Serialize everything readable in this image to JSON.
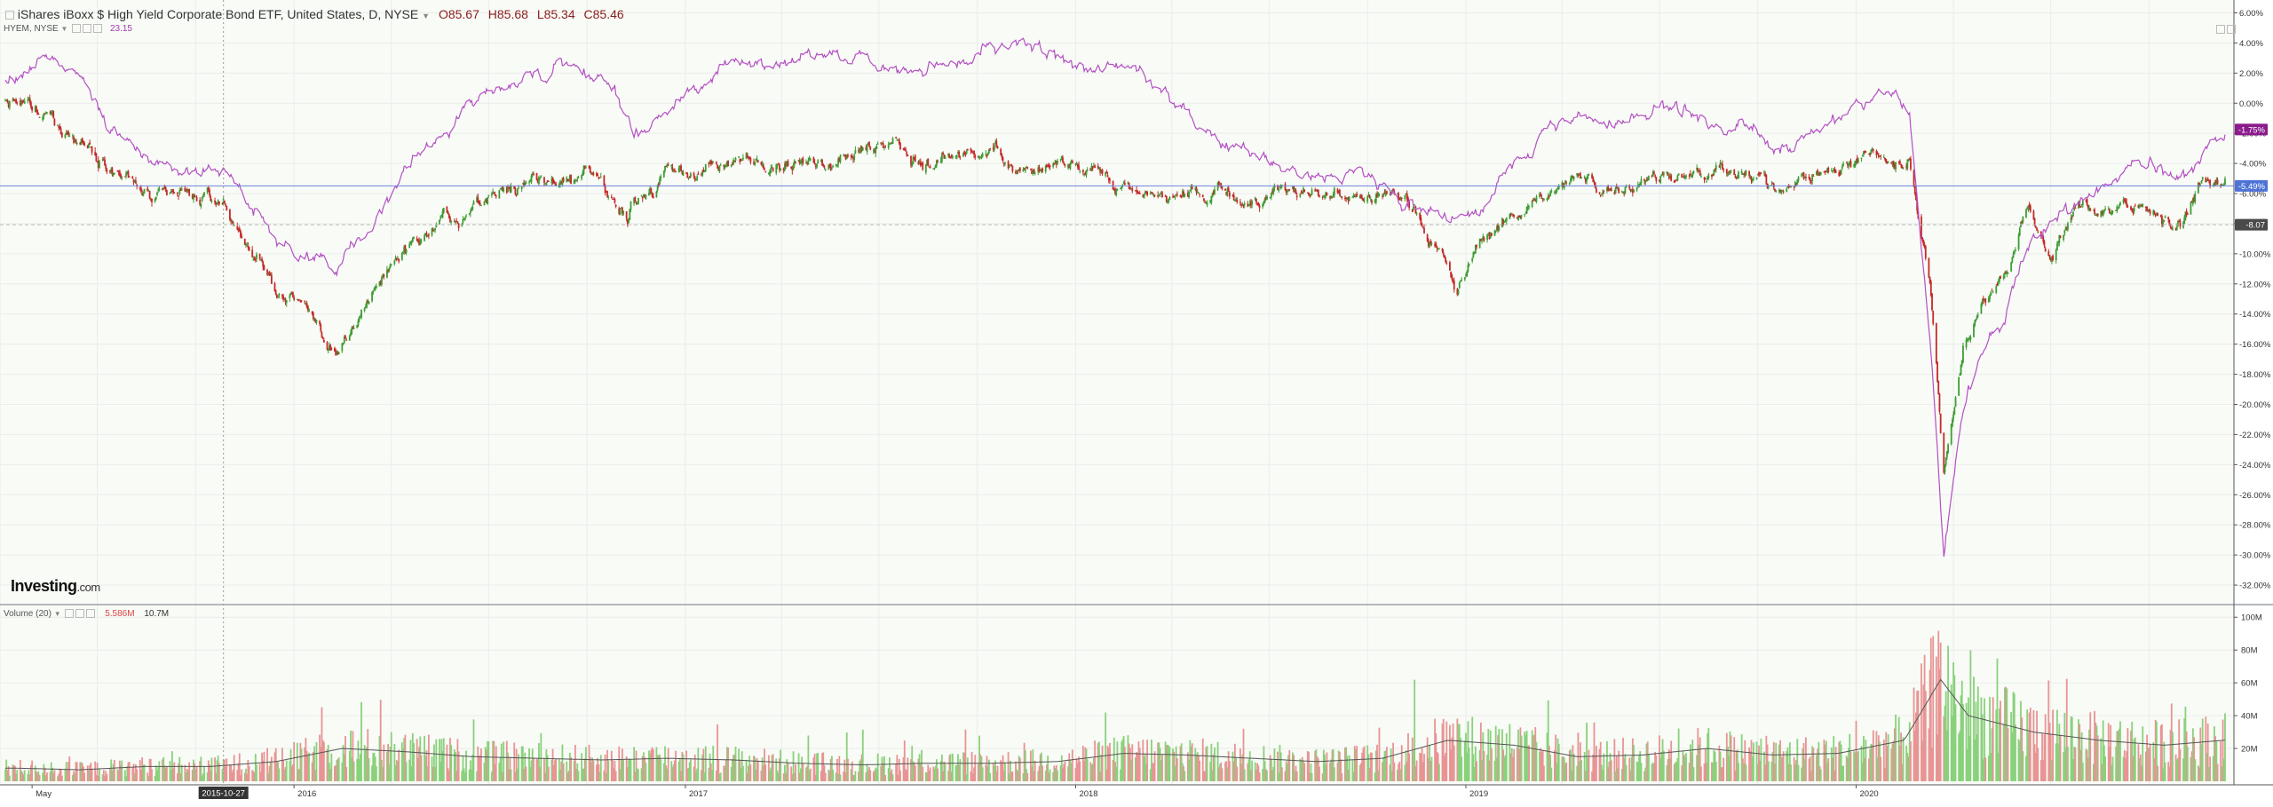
{
  "header": {
    "title": "iShares iBoxx $ High Yield Corporate Bond ETF, United States, D, NYSE",
    "ohlc": {
      "open": "O85.67",
      "high": "H85.68",
      "low": "L85.34",
      "close": "C85.46"
    },
    "compare_label": "HYEM, NYSE",
    "compare_value": "23.15",
    "volume_label": "Volume (20)",
    "volume_value": "5.586M",
    "volume_ma_value": "10.7M"
  },
  "logo": {
    "brand": "Investing",
    "suffix": ".com"
  },
  "colors": {
    "up": "#3f9c35",
    "down": "#c42a2a",
    "up_volume": "#8ad17c",
    "down_volume": "#e89494",
    "compare_line": "#b44fc4",
    "price_line": "#6e86dd",
    "grid": "#ececec",
    "background": "#f8fbf6"
  },
  "chart_data": [
    {
      "type": "line",
      "title": "iShares iBoxx $ High Yield Corporate Bond ETF, United States, D, NYSE",
      "x_axis_labels": [
        "May",
        "2016",
        "2017",
        "2018",
        "2019",
        "2020"
      ],
      "x_axis_dates": [
        "2015-05-01",
        "2016-01-01",
        "2017-01-01",
        "2018-01-01",
        "2019-01-01",
        "2020-01-01"
      ],
      "crosshair_date": "2015-10-27",
      "y_axis_unit": "%",
      "ylim": [
        -33,
        6.5
      ],
      "y_ticks": [
        "6.00%",
        "4.00%",
        "2.00%",
        "0.00%",
        "-2.00%",
        "-4.00%",
        "-6.00%",
        "-8.00%",
        "-10.00%",
        "-12.00%",
        "-14.00%",
        "-16.00%",
        "-18.00%",
        "-20.00%",
        "-22.00%",
        "-24.00%",
        "-26.00%",
        "-28.00%",
        "-30.00%",
        "-32.00%"
      ],
      "series": [
        {
          "name": "HYEM, NYSE",
          "kind": "line",
          "x": [
            "2015-04-15",
            "2015-05-20",
            "2015-06-15",
            "2015-07-15",
            "2015-08-24",
            "2015-09-15",
            "2015-10-27",
            "2015-11-15",
            "2015-12-15",
            "2016-01-20",
            "2016-02-11",
            "2016-03-15",
            "2016-04-15",
            "2016-05-15",
            "2016-06-15",
            "2016-07-15",
            "2016-08-15",
            "2016-09-15",
            "2016-10-15",
            "2016-11-08",
            "2016-11-14",
            "2016-12-15",
            "2017-01-15",
            "2017-02-15",
            "2017-03-15",
            "2017-04-15",
            "2017-05-15",
            "2017-06-15",
            "2017-07-15",
            "2017-08-15",
            "2017-09-15",
            "2017-10-15",
            "2017-11-15",
            "2017-12-15",
            "2018-01-15",
            "2018-02-15",
            "2018-03-15",
            "2018-04-15",
            "2018-05-15",
            "2018-06-15",
            "2018-07-15",
            "2018-08-15",
            "2018-09-15",
            "2018-10-15",
            "2018-11-15",
            "2018-12-24",
            "2019-01-15",
            "2019-02-15",
            "2019-03-15",
            "2019-04-15",
            "2019-05-15",
            "2019-06-15",
            "2019-07-15",
            "2019-08-15",
            "2019-09-15",
            "2019-10-15",
            "2019-11-15",
            "2019-12-15",
            "2020-01-15",
            "2020-02-01",
            "2020-02-20",
            "2020-03-10",
            "2020-03-23",
            "2020-04-10",
            "2020-05-01",
            "2020-05-20",
            "2020-06-10",
            "2020-07-01",
            "2020-08-01",
            "2020-09-01",
            "2020-10-01",
            "2020-10-30",
            "2020-11-20",
            "2020-12-10"
          ],
          "values": [
            1.5,
            3.0,
            2.0,
            -1.0,
            -4.5,
            -5.0,
            -4.5,
            -6.0,
            -9.0,
            -10.5,
            -11.0,
            -8.0,
            -4.0,
            -2.0,
            0.5,
            1.5,
            2.0,
            2.5,
            1.5,
            -1.0,
            -2.0,
            -0.5,
            1.5,
            2.5,
            3.0,
            3.0,
            3.5,
            3.0,
            2.5,
            2.5,
            2.5,
            3.5,
            3.5,
            2.5,
            2.5,
            2.0,
            1.0,
            -0.5,
            -2.0,
            -3.0,
            -4.0,
            -5.0,
            -4.5,
            -5.5,
            -6.5,
            -8.0,
            -7.0,
            -4.0,
            -2.0,
            -1.0,
            -1.5,
            -0.5,
            0.0,
            -1.5,
            -1.0,
            -3.0,
            -2.0,
            -1.0,
            0.5,
            1.0,
            -1.0,
            -15.0,
            -30.0,
            -20.0,
            -16.0,
            -14.0,
            -9.5,
            -8.0,
            -6.5,
            -5.0,
            -3.5,
            -5.5,
            -3.0,
            -2.0
          ]
        },
        {
          "name": "iShares iBoxx $ High Yield Corporate Bond ETF",
          "kind": "candlestick",
          "x": [
            "2015-04-15",
            "2015-05-20",
            "2015-06-15",
            "2015-07-15",
            "2015-08-24",
            "2015-09-15",
            "2015-10-27",
            "2015-11-15",
            "2015-12-15",
            "2016-01-20",
            "2016-02-11",
            "2016-03-15",
            "2016-04-15",
            "2016-05-15",
            "2016-06-15",
            "2016-07-15",
            "2016-08-15",
            "2016-09-15",
            "2016-10-15",
            "2016-11-08",
            "2016-11-14",
            "2016-12-15",
            "2017-01-15",
            "2017-02-15",
            "2017-03-15",
            "2017-04-15",
            "2017-05-15",
            "2017-06-15",
            "2017-07-15",
            "2017-08-15",
            "2017-09-15",
            "2017-10-15",
            "2017-11-15",
            "2017-12-15",
            "2018-01-15",
            "2018-02-15",
            "2018-03-15",
            "2018-04-15",
            "2018-05-15",
            "2018-06-15",
            "2018-07-15",
            "2018-08-15",
            "2018-09-15",
            "2018-10-15",
            "2018-11-15",
            "2018-12-24",
            "2019-01-15",
            "2019-02-15",
            "2019-03-15",
            "2019-04-15",
            "2019-05-15",
            "2019-06-15",
            "2019-07-15",
            "2019-08-15",
            "2019-09-15",
            "2019-10-15",
            "2019-11-15",
            "2019-12-15",
            "2020-01-15",
            "2020-02-01",
            "2020-02-20",
            "2020-03-10",
            "2020-03-23",
            "2020-04-10",
            "2020-05-01",
            "2020-05-20",
            "2020-06-10",
            "2020-07-01",
            "2020-08-01",
            "2020-09-01",
            "2020-10-01",
            "2020-10-30",
            "2020-11-20",
            "2020-12-10"
          ],
          "values": [
            0.0,
            -1.0,
            -2.5,
            -4.5,
            -6.5,
            -6.0,
            -6.5,
            -9.0,
            -12.5,
            -14.0,
            -17.0,
            -12.5,
            -9.5,
            -8.5,
            -7.5,
            -5.5,
            -5.0,
            -5.5,
            -5.0,
            -7.0,
            -6.5,
            -5.0,
            -4.5,
            -4.0,
            -3.5,
            -4.0,
            -3.5,
            -3.0,
            -3.0,
            -4.0,
            -3.5,
            -3.5,
            -4.5,
            -4.0,
            -4.0,
            -5.5,
            -6.0,
            -6.5,
            -6.0,
            -6.5,
            -6.0,
            -6.0,
            -6.5,
            -6.0,
            -7.0,
            -12.5,
            -9.0,
            -7.5,
            -6.0,
            -5.0,
            -5.5,
            -5.0,
            -4.5,
            -5.0,
            -5.0,
            -5.5,
            -5.0,
            -4.5,
            -3.5,
            -4.0,
            -3.5,
            -12.0,
            -24.5,
            -16.0,
            -13.0,
            -11.0,
            -7.0,
            -10.0,
            -6.5,
            -7.0,
            -7.0,
            -8.0,
            -5.5,
            -5.5
          ]
        }
      ],
      "markers": [
        {
          "label": "-1.75%",
          "value": -1.75,
          "color": "#8a1b8c"
        },
        {
          "label": "-5.49%",
          "value": -5.49,
          "color": "#4e73d6"
        },
        {
          "label": "-8.07",
          "value": -8.07,
          "color": "#4a4a4a"
        }
      ]
    },
    {
      "type": "bar",
      "title": "Volume (20)",
      "ylim": [
        0,
        105
      ],
      "y_unit": "M",
      "y_ticks": [
        "20M",
        "40M",
        "60M",
        "80M",
        "100M"
      ],
      "x": [
        "2015-04-15",
        "2015-06-15",
        "2015-08-15",
        "2015-10-15",
        "2015-12-15",
        "2016-02-15",
        "2016-04-15",
        "2016-06-15",
        "2016-08-15",
        "2016-10-15",
        "2016-12-15",
        "2017-02-15",
        "2017-04-15",
        "2017-06-15",
        "2017-08-15",
        "2017-10-15",
        "2017-12-15",
        "2018-02-15",
        "2018-04-15",
        "2018-06-15",
        "2018-08-15",
        "2018-10-15",
        "2018-12-15",
        "2019-02-15",
        "2019-04-15",
        "2019-06-15",
        "2019-08-15",
        "2019-10-15",
        "2019-12-15",
        "2020-02-15",
        "2020-03-20",
        "2020-04-15",
        "2020-06-15",
        "2020-08-15",
        "2020-10-15",
        "2020-12-10"
      ],
      "volume_ma_values": [
        8,
        7,
        9,
        9,
        12,
        20,
        18,
        15,
        14,
        13,
        14,
        13,
        11,
        10,
        11,
        11,
        12,
        17,
        16,
        14,
        12,
        14,
        25,
        22,
        15,
        16,
        20,
        16,
        17,
        25,
        62,
        40,
        30,
        25,
        22,
        25
      ]
    }
  ]
}
